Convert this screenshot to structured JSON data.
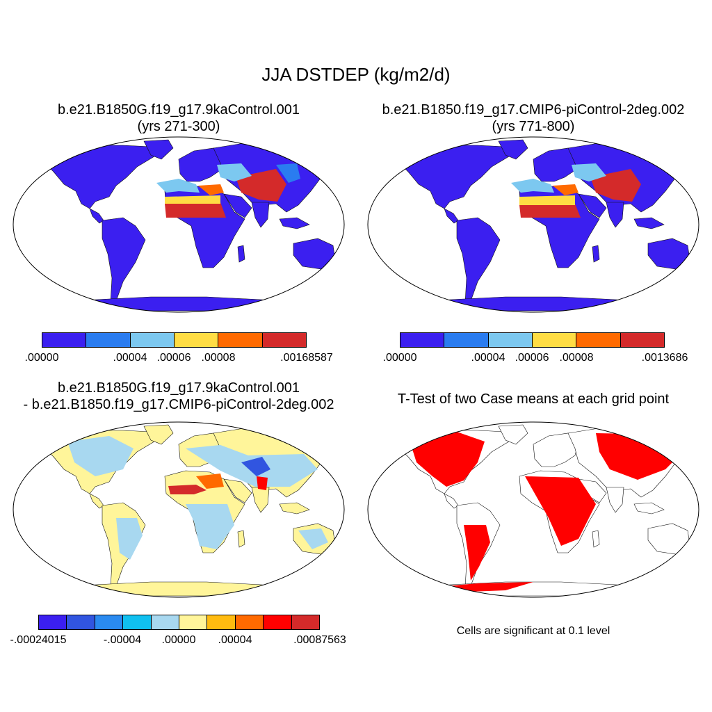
{
  "title": "JJA DSTDEP (kg/m2/d)",
  "panels": [
    {
      "title_line1": "b.e21.B1850G.f19_g17.9kaControl.001",
      "title_line2": "(yrs 271-300)",
      "colorbar": {
        "colors": [
          "#3b1ff0",
          "#2a7cf0",
          "#7cc8f0",
          "#ffdd44",
          "#ff6a00",
          "#d42a2a"
        ],
        "labels": [
          ".00000",
          ".00004",
          ".00006",
          ".00008",
          ".00168587"
        ]
      }
    },
    {
      "title_line1": "b.e21.B1850.f19_g17.CMIP6-piControl-2deg.002",
      "title_line2": "(yrs 771-800)",
      "colorbar": {
        "colors": [
          "#3b1ff0",
          "#2a7cf0",
          "#7cc8f0",
          "#ffdd44",
          "#ff6a00",
          "#d42a2a"
        ],
        "labels": [
          ".00000",
          ".00004",
          ".00006",
          ".00008",
          ".0013686"
        ]
      }
    },
    {
      "title_line1": "b.e21.B1850G.f19_g17.9kaControl.001",
      "title_line2": "- b.e21.B1850.f19_g17.CMIP6-piControl-2deg.002",
      "colorbar": {
        "colors": [
          "#3b1ff0",
          "#3155e0",
          "#2a8af0",
          "#10c0f0",
          "#a8d8f0",
          "#fff59a",
          "#ffbb10",
          "#ff6a00",
          "#ff0000",
          "#d42a2a"
        ],
        "labels": [
          "-.00024015",
          "-.00004",
          ".00000",
          ".00004",
          ".00087563"
        ]
      }
    },
    {
      "title_line1": "T-Test of two Case means at each grid point",
      "note": "Cells are significant at 0.1 level"
    }
  ]
}
